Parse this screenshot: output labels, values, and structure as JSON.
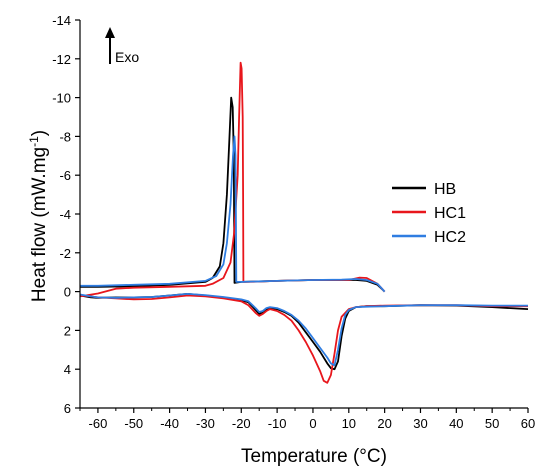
{
  "chart_data": {
    "type": "line",
    "title": "",
    "xlabel": "Temperature (°C)",
    "ylabel": "Heat flow (mW.mg",
    "ylabel_sup": "-1",
    "ylabel_close": ")",
    "xlim": [
      -65,
      60
    ],
    "ylim": [
      6,
      -14
    ],
    "y_inverted": true,
    "grid": false,
    "legend_position": "right-middle",
    "x_ticks": [
      -60,
      -50,
      -40,
      -30,
      -20,
      -10,
      0,
      10,
      20,
      30,
      40,
      50,
      60
    ],
    "y_ticks": [
      -14,
      -12,
      -10,
      -8,
      -6,
      -4,
      -2,
      0,
      2,
      4,
      6
    ],
    "annotation": {
      "text": "Exo",
      "arrow": "up"
    },
    "series": [
      {
        "name": "HB",
        "color": "#000000",
        "cooling": [
          [
            20,
            0.0
          ],
          [
            18,
            -0.35
          ],
          [
            15,
            -0.55
          ],
          [
            12,
            -0.6
          ],
          [
            8,
            -0.6
          ],
          [
            0,
            -0.6
          ],
          [
            -10,
            -0.55
          ],
          [
            -20,
            -0.5
          ],
          [
            -21.9,
            -0.45
          ],
          [
            -22,
            -4
          ],
          [
            -22.1,
            -7
          ],
          [
            -22.4,
            -9.5
          ],
          [
            -22.8,
            -10
          ],
          [
            -23.3,
            -8
          ],
          [
            -24,
            -5
          ],
          [
            -25,
            -2.5
          ],
          [
            -26,
            -1.3
          ],
          [
            -28,
            -0.7
          ],
          [
            -30,
            -0.5
          ],
          [
            -40,
            -0.35
          ],
          [
            -50,
            -0.28
          ],
          [
            -60,
            -0.25
          ],
          [
            -65,
            -0.25
          ]
        ],
        "heating": [
          [
            -65,
            0.2
          ],
          [
            -62,
            0.3
          ],
          [
            -60,
            0.32
          ],
          [
            -55,
            0.3
          ],
          [
            -50,
            0.3
          ],
          [
            -45,
            0.28
          ],
          [
            -40,
            0.2
          ],
          [
            -35,
            0.12
          ],
          [
            -30,
            0.2
          ],
          [
            -25,
            0.3
          ],
          [
            -20,
            0.45
          ],
          [
            -18,
            0.55
          ],
          [
            -16,
            0.95
          ],
          [
            -15,
            1.15
          ],
          [
            -14,
            1.1
          ],
          [
            -13,
            0.95
          ],
          [
            -12,
            0.85
          ],
          [
            -10,
            0.9
          ],
          [
            -8,
            1.05
          ],
          [
            -6,
            1.25
          ],
          [
            -4,
            1.6
          ],
          [
            -2,
            2.1
          ],
          [
            0,
            2.6
          ],
          [
            2,
            3.1
          ],
          [
            4,
            3.7
          ],
          [
            5,
            3.95
          ],
          [
            6,
            4.0
          ],
          [
            7,
            3.6
          ],
          [
            8,
            2.3
          ],
          [
            9,
            1.4
          ],
          [
            10,
            1.0
          ],
          [
            12,
            0.8
          ],
          [
            15,
            0.75
          ],
          [
            20,
            0.75
          ],
          [
            30,
            0.7
          ],
          [
            40,
            0.72
          ],
          [
            50,
            0.8
          ],
          [
            60,
            0.9
          ]
        ]
      },
      {
        "name": "HC1",
        "color": "#e8161c",
        "cooling": [
          [
            20,
            0.0
          ],
          [
            18,
            -0.4
          ],
          [
            15,
            -0.7
          ],
          [
            13,
            -0.72
          ],
          [
            10,
            -0.6
          ],
          [
            0,
            -0.6
          ],
          [
            -10,
            -0.55
          ],
          [
            -18,
            -0.5
          ],
          [
            -19.4,
            -0.5
          ],
          [
            -19.5,
            -5
          ],
          [
            -19.6,
            -9
          ],
          [
            -19.9,
            -11.5
          ],
          [
            -20.2,
            -11.8
          ],
          [
            -20.6,
            -9
          ],
          [
            -21,
            -6
          ],
          [
            -22,
            -3
          ],
          [
            -23,
            -1.5
          ],
          [
            -25,
            -0.7
          ],
          [
            -28,
            -0.4
          ],
          [
            -30,
            -0.3
          ],
          [
            -40,
            -0.25
          ],
          [
            -50,
            -0.2
          ],
          [
            -55,
            -0.15
          ],
          [
            -60,
            0.1
          ],
          [
            -65,
            0.25
          ]
        ],
        "heating": [
          [
            -65,
            0.2
          ],
          [
            -62,
            0.25
          ],
          [
            -60,
            0.3
          ],
          [
            -55,
            0.35
          ],
          [
            -50,
            0.4
          ],
          [
            -45,
            0.38
          ],
          [
            -40,
            0.3
          ],
          [
            -35,
            0.2
          ],
          [
            -30,
            0.25
          ],
          [
            -25,
            0.35
          ],
          [
            -20,
            0.5
          ],
          [
            -18,
            0.7
          ],
          [
            -16,
            1.1
          ],
          [
            -15,
            1.25
          ],
          [
            -14,
            1.15
          ],
          [
            -13,
            1.0
          ],
          [
            -12,
            0.9
          ],
          [
            -10,
            1.0
          ],
          [
            -8,
            1.2
          ],
          [
            -6,
            1.5
          ],
          [
            -4,
            2.0
          ],
          [
            -2,
            2.6
          ],
          [
            0,
            3.3
          ],
          [
            2,
            4.1
          ],
          [
            3,
            4.6
          ],
          [
            4,
            4.7
          ],
          [
            5,
            4.3
          ],
          [
            6,
            3.2
          ],
          [
            7,
            2.0
          ],
          [
            8,
            1.3
          ],
          [
            10,
            0.9
          ],
          [
            12,
            0.8
          ],
          [
            15,
            0.75
          ],
          [
            20,
            0.72
          ],
          [
            30,
            0.7
          ],
          [
            40,
            0.7
          ],
          [
            50,
            0.75
          ],
          [
            60,
            0.75
          ]
        ]
      },
      {
        "name": "HC2",
        "color": "#2f7de1",
        "cooling": [
          [
            20,
            0.0
          ],
          [
            18,
            -0.4
          ],
          [
            15,
            -0.6
          ],
          [
            12,
            -0.65
          ],
          [
            8,
            -0.62
          ],
          [
            0,
            -0.6
          ],
          [
            -10,
            -0.55
          ],
          [
            -20,
            -0.5
          ],
          [
            -21.4,
            -0.5
          ],
          [
            -21.5,
            -4
          ],
          [
            -21.6,
            -7
          ],
          [
            -21.9,
            -8
          ],
          [
            -22.3,
            -7
          ],
          [
            -23,
            -4.5
          ],
          [
            -24,
            -2.5
          ],
          [
            -25,
            -1.4
          ],
          [
            -27,
            -0.8
          ],
          [
            -30,
            -0.55
          ],
          [
            -40,
            -0.4
          ],
          [
            -50,
            -0.35
          ],
          [
            -60,
            -0.3
          ],
          [
            -65,
            -0.3
          ]
        ],
        "heating": [
          [
            -65,
            0.15
          ],
          [
            -62,
            0.25
          ],
          [
            -60,
            0.3
          ],
          [
            -55,
            0.32
          ],
          [
            -50,
            0.3
          ],
          [
            -45,
            0.28
          ],
          [
            -40,
            0.2
          ],
          [
            -35,
            0.12
          ],
          [
            -30,
            0.18
          ],
          [
            -25,
            0.28
          ],
          [
            -20,
            0.4
          ],
          [
            -18,
            0.5
          ],
          [
            -16,
            0.85
          ],
          [
            -15,
            1.05
          ],
          [
            -14,
            1.0
          ],
          [
            -13,
            0.85
          ],
          [
            -12,
            0.8
          ],
          [
            -10,
            0.85
          ],
          [
            -8,
            1.0
          ],
          [
            -6,
            1.2
          ],
          [
            -4,
            1.5
          ],
          [
            -2,
            1.9
          ],
          [
            0,
            2.4
          ],
          [
            2,
            2.9
          ],
          [
            4,
            3.4
          ],
          [
            5,
            3.7
          ],
          [
            6,
            3.8
          ],
          [
            7,
            3.0
          ],
          [
            8,
            1.9
          ],
          [
            9,
            1.2
          ],
          [
            10,
            0.95
          ],
          [
            12,
            0.8
          ],
          [
            15,
            0.78
          ],
          [
            20,
            0.75
          ],
          [
            30,
            0.7
          ],
          [
            40,
            0.7
          ],
          [
            50,
            0.72
          ],
          [
            60,
            0.72
          ]
        ]
      }
    ]
  }
}
